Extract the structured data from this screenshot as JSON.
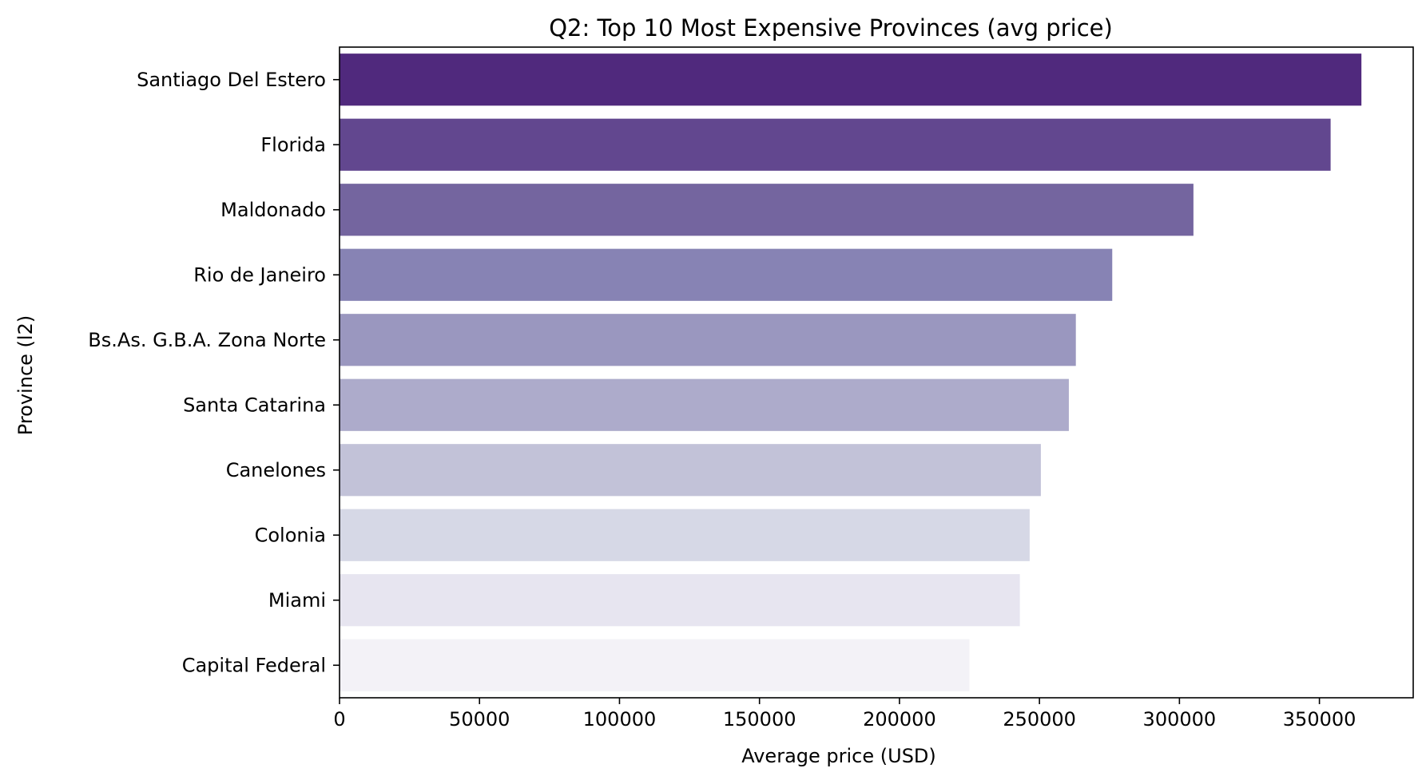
{
  "chart_data": {
    "type": "bar",
    "orientation": "horizontal",
    "title": "Q2: Top 10 Most Expensive Provinces (avg price)",
    "xlabel": "Average price (USD)",
    "ylabel": "Province (l2)",
    "categories": [
      "Santiago Del Estero",
      "Florida",
      "Maldonado",
      "Rio de Janeiro",
      "Bs.As. G.B.A. Zona Norte",
      "Santa Catarina",
      "Canelones",
      "Colonia",
      "Miami",
      "Capital Federal"
    ],
    "values": [
      365000,
      354000,
      305000,
      276000,
      263000,
      260500,
      250500,
      246500,
      243000,
      225000
    ],
    "colors": [
      "#50297d",
      "#62478f",
      "#74659f",
      "#8783b4",
      "#9a97bf",
      "#adabcb",
      "#c2c2d8",
      "#d6d8e6",
      "#e7e5f0",
      "#f3f2f7"
    ],
    "xlim": [
      0,
      383500
    ],
    "xticks": [
      0,
      50000,
      100000,
      150000,
      200000,
      250000,
      300000,
      350000
    ],
    "xtick_labels": [
      "0",
      "50000",
      "100000",
      "150000",
      "200000",
      "250000",
      "300000",
      "350000"
    ],
    "grid": false,
    "legend": "none"
  }
}
